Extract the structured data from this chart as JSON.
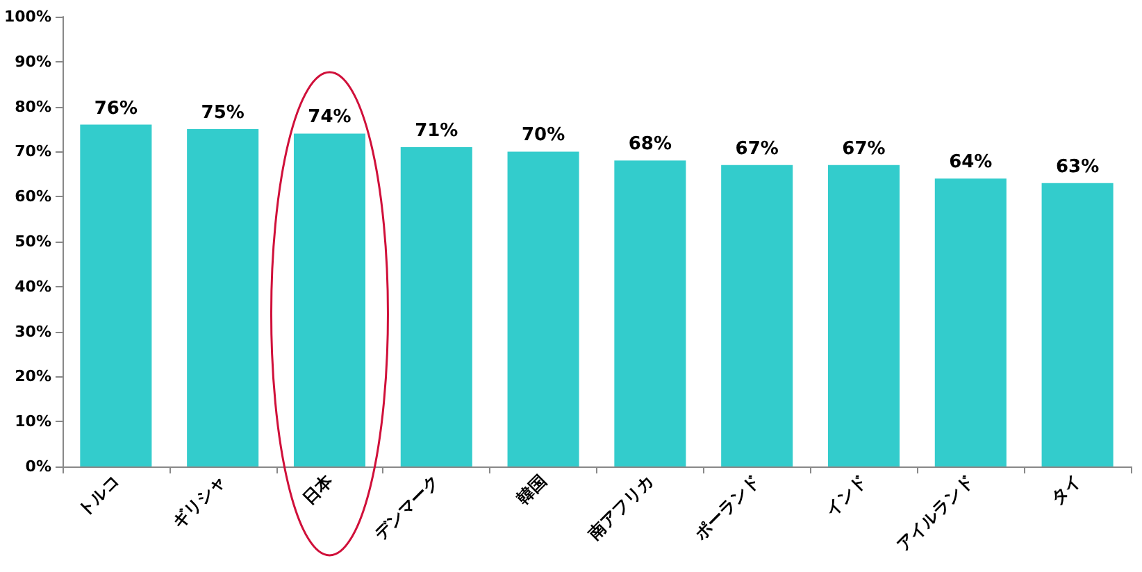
{
  "chart_data": {
    "type": "bar",
    "categories": [
      "トルコ",
      "ギリシャ",
      "日本",
      "デンマーク",
      "韓国",
      "南アフリカ",
      "ポーランド",
      "インド",
      "アイルランド",
      "タイ"
    ],
    "values": [
      76,
      75,
      74,
      71,
      70,
      68,
      67,
      67,
      64,
      63
    ],
    "value_labels": [
      "76%",
      "75%",
      "74%",
      "71%",
      "70%",
      "68%",
      "67%",
      "67%",
      "64%",
      "63%"
    ],
    "color": "#33cccc",
    "ylim": [
      0,
      100
    ],
    "yticks": [
      {
        "value": 0,
        "label": "0%"
      },
      {
        "value": 10,
        "label": "10%"
      },
      {
        "value": 20,
        "label": "20%"
      },
      {
        "value": 30,
        "label": "30%"
      },
      {
        "value": 40,
        "label": "40%"
      },
      {
        "value": 50,
        "label": "50%"
      },
      {
        "value": 60,
        "label": "60%"
      },
      {
        "value": 70,
        "label": "70%"
      },
      {
        "value": 80,
        "label": "80%"
      },
      {
        "value": 90,
        "label": "90%"
      },
      {
        "value": 100,
        "label": "100%"
      }
    ]
  }
}
